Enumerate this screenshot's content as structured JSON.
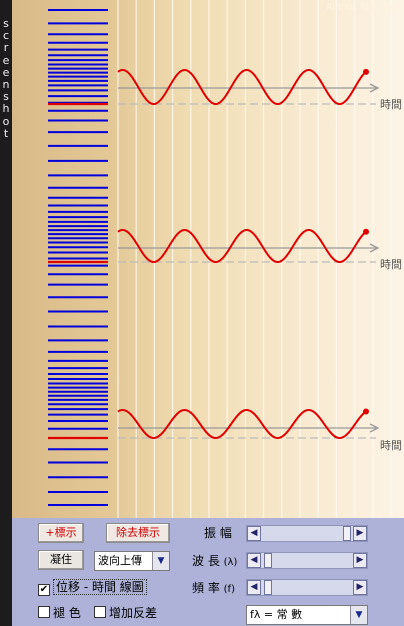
{
  "sidebar": {
    "label": "screenshot"
  },
  "sim": {
    "author": "Author: C.K. Ng",
    "time_label": "時間",
    "colors": {
      "wave": "#e00000",
      "marker": "#e00000",
      "lines": "#0000dd",
      "axis": "#999999"
    }
  },
  "controls": {
    "mark_button": "+標示",
    "remove_mark_button": "除去標示",
    "freeze_button": "凝住",
    "direction_select": "波向上傳",
    "amplitude_label": "振 幅",
    "wavelength_label": "波 長",
    "wavelength_symbol": "(λ)",
    "frequency_label": "頻 率",
    "frequency_symbol": "(f)",
    "displacement_time_check": "位移 - 時間 線圖",
    "fade_check": "褪 色",
    "add_antiphase_check": "增加反差",
    "flambda_select": "fλ = 常 數",
    "amplitude_value": 0.95,
    "wavelength_value": 0.03,
    "frequency_value": 0.03
  }
}
